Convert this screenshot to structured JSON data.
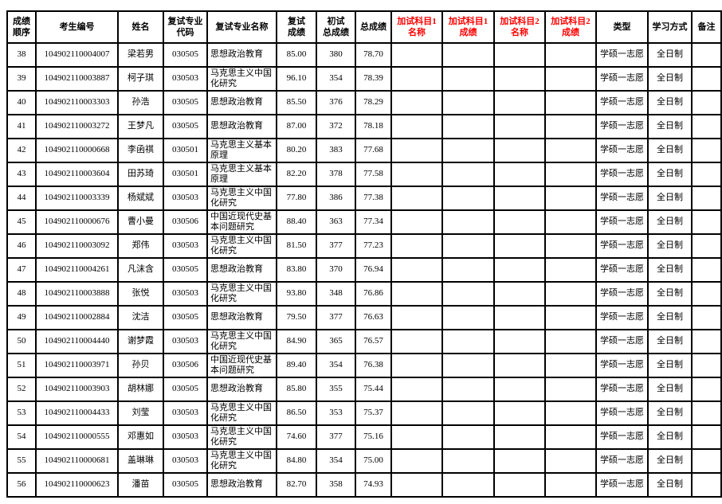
{
  "colors": {
    "text": "#000000",
    "extra_header_red": "#FF0000",
    "border": "#000000",
    "background": "#FFFFFF"
  },
  "table": {
    "columns": [
      {
        "key": "rank",
        "label": "成绩\n顺序",
        "red": false
      },
      {
        "key": "candidate-no",
        "label": "考生编号",
        "red": false
      },
      {
        "key": "name",
        "label": "姓名",
        "red": false
      },
      {
        "key": "major-code",
        "label": "复试专业\n代码",
        "red": false
      },
      {
        "key": "major-name",
        "label": "复试专业名称",
        "red": false
      },
      {
        "key": "retest-score",
        "label": "复试\n成绩",
        "red": false
      },
      {
        "key": "initial-score",
        "label": "初试\n总成绩",
        "red": false
      },
      {
        "key": "total-score",
        "label": "总成绩",
        "red": false
      },
      {
        "key": "extra1-name",
        "label": "加试科目1\n名称",
        "red": true
      },
      {
        "key": "extra1-score",
        "label": "加试科目1\n成绩",
        "red": true
      },
      {
        "key": "extra2-name",
        "label": "加试科目2\n名称",
        "red": true
      },
      {
        "key": "extra2-score",
        "label": "加试科目2\n成绩",
        "red": true
      },
      {
        "key": "type",
        "label": "类型",
        "red": false
      },
      {
        "key": "study-mode",
        "label": "学习方式",
        "red": false
      },
      {
        "key": "remark",
        "label": "备注",
        "red": false
      }
    ],
    "rows": [
      {
        "cells": [
          "38",
          "104902110004007",
          "梁若男",
          "030505",
          "思想政治教育",
          "85.00",
          "380",
          "78.70",
          "",
          "",
          "",
          "",
          "学硕一志愿",
          "全日制",
          ""
        ]
      },
      {
        "cells": [
          "39",
          "104902110003887",
          "柯子琪",
          "030503",
          "马克思主义中国化研究",
          "96.10",
          "354",
          "78.39",
          "",
          "",
          "",
          "",
          "学硕一志愿",
          "全日制",
          ""
        ]
      },
      {
        "cells": [
          "40",
          "104902110003303",
          "孙浩",
          "030505",
          "思想政治教育",
          "85.50",
          "376",
          "78.29",
          "",
          "",
          "",
          "",
          "学硕一志愿",
          "全日制",
          ""
        ]
      },
      {
        "cells": [
          "41",
          "104902110003272",
          "王梦凡",
          "030505",
          "思想政治教育",
          "87.00",
          "372",
          "78.18",
          "",
          "",
          "",
          "",
          "学硕一志愿",
          "全日制",
          ""
        ]
      },
      {
        "cells": [
          "42",
          "104902110000668",
          "李函祺",
          "030501",
          "马克思主义基本原理",
          "80.20",
          "383",
          "77.68",
          "",
          "",
          "",
          "",
          "学硕一志愿",
          "全日制",
          ""
        ]
      },
      {
        "cells": [
          "43",
          "104902110003604",
          "田苏琦",
          "030501",
          "马克思主义基本原理",
          "82.20",
          "378",
          "77.58",
          "",
          "",
          "",
          "",
          "学硕一志愿",
          "全日制",
          ""
        ]
      },
      {
        "cells": [
          "44",
          "104902110003339",
          "杨斌斌",
          "030503",
          "马克思主义中国化研究",
          "77.80",
          "386",
          "77.38",
          "",
          "",
          "",
          "",
          "学硕一志愿",
          "全日制",
          ""
        ]
      },
      {
        "cells": [
          "45",
          "104902110000676",
          "曹小曼",
          "030506",
          "中国近现代史基本问题研究",
          "88.40",
          "363",
          "77.34",
          "",
          "",
          "",
          "",
          "学硕一志愿",
          "全日制",
          ""
        ]
      },
      {
        "cells": [
          "46",
          "104902110003092",
          "郑伟",
          "030503",
          "马克思主义中国化研究",
          "81.50",
          "377",
          "77.23",
          "",
          "",
          "",
          "",
          "学硕一志愿",
          "全日制",
          ""
        ]
      },
      {
        "cells": [
          "47",
          "104902110004261",
          "凡沫含",
          "030505",
          "思想政治教育",
          "83.80",
          "370",
          "76.94",
          "",
          "",
          "",
          "",
          "学硕一志愿",
          "全日制",
          ""
        ]
      },
      {
        "cells": [
          "48",
          "104902110003888",
          "张悦",
          "030503",
          "马克思主义中国化研究",
          "93.80",
          "348",
          "76.86",
          "",
          "",
          "",
          "",
          "学硕一志愿",
          "全日制",
          ""
        ]
      },
      {
        "cells": [
          "49",
          "104902110002884",
          "沈洁",
          "030505",
          "思想政治教育",
          "79.50",
          "377",
          "76.63",
          "",
          "",
          "",
          "",
          "学硕一志愿",
          "全日制",
          ""
        ]
      },
      {
        "cells": [
          "50",
          "104902110004440",
          "谢梦霞",
          "030503",
          "马克思主义中国化研究",
          "84.90",
          "365",
          "76.57",
          "",
          "",
          "",
          "",
          "学硕一志愿",
          "全日制",
          ""
        ]
      },
      {
        "cells": [
          "51",
          "104902110003971",
          "孙贝",
          "030506",
          "中国近现代史基本问题研究",
          "89.40",
          "354",
          "76.38",
          "",
          "",
          "",
          "",
          "学硕一志愿",
          "全日制",
          ""
        ]
      },
      {
        "cells": [
          "52",
          "104902110003903",
          "胡林娜",
          "030505",
          "思想政治教育",
          "85.80",
          "355",
          "75.44",
          "",
          "",
          "",
          "",
          "学硕一志愿",
          "全日制",
          ""
        ]
      },
      {
        "cells": [
          "53",
          "104902110004433",
          "刘莹",
          "030503",
          "马克思主义中国化研究",
          "86.50",
          "353",
          "75.37",
          "",
          "",
          "",
          "",
          "学硕一志愿",
          "全日制",
          ""
        ]
      },
      {
        "cells": [
          "54",
          "104902110000555",
          "邓惠如",
          "030503",
          "马克思主义中国化研究",
          "74.60",
          "377",
          "75.16",
          "",
          "",
          "",
          "",
          "学硕一志愿",
          "全日制",
          ""
        ]
      },
      {
        "cells": [
          "55",
          "104902110000681",
          "盖琳琳",
          "030503",
          "马克思主义中国化研究",
          "84.80",
          "354",
          "75.00",
          "",
          "",
          "",
          "",
          "学硕一志愿",
          "全日制",
          ""
        ]
      },
      {
        "cells": [
          "56",
          "104902110000623",
          "潘苗",
          "030505",
          "思想政治教育",
          "82.70",
          "358",
          "74.93",
          "",
          "",
          "",
          "",
          "学硕一志愿",
          "全日制",
          ""
        ]
      }
    ]
  }
}
